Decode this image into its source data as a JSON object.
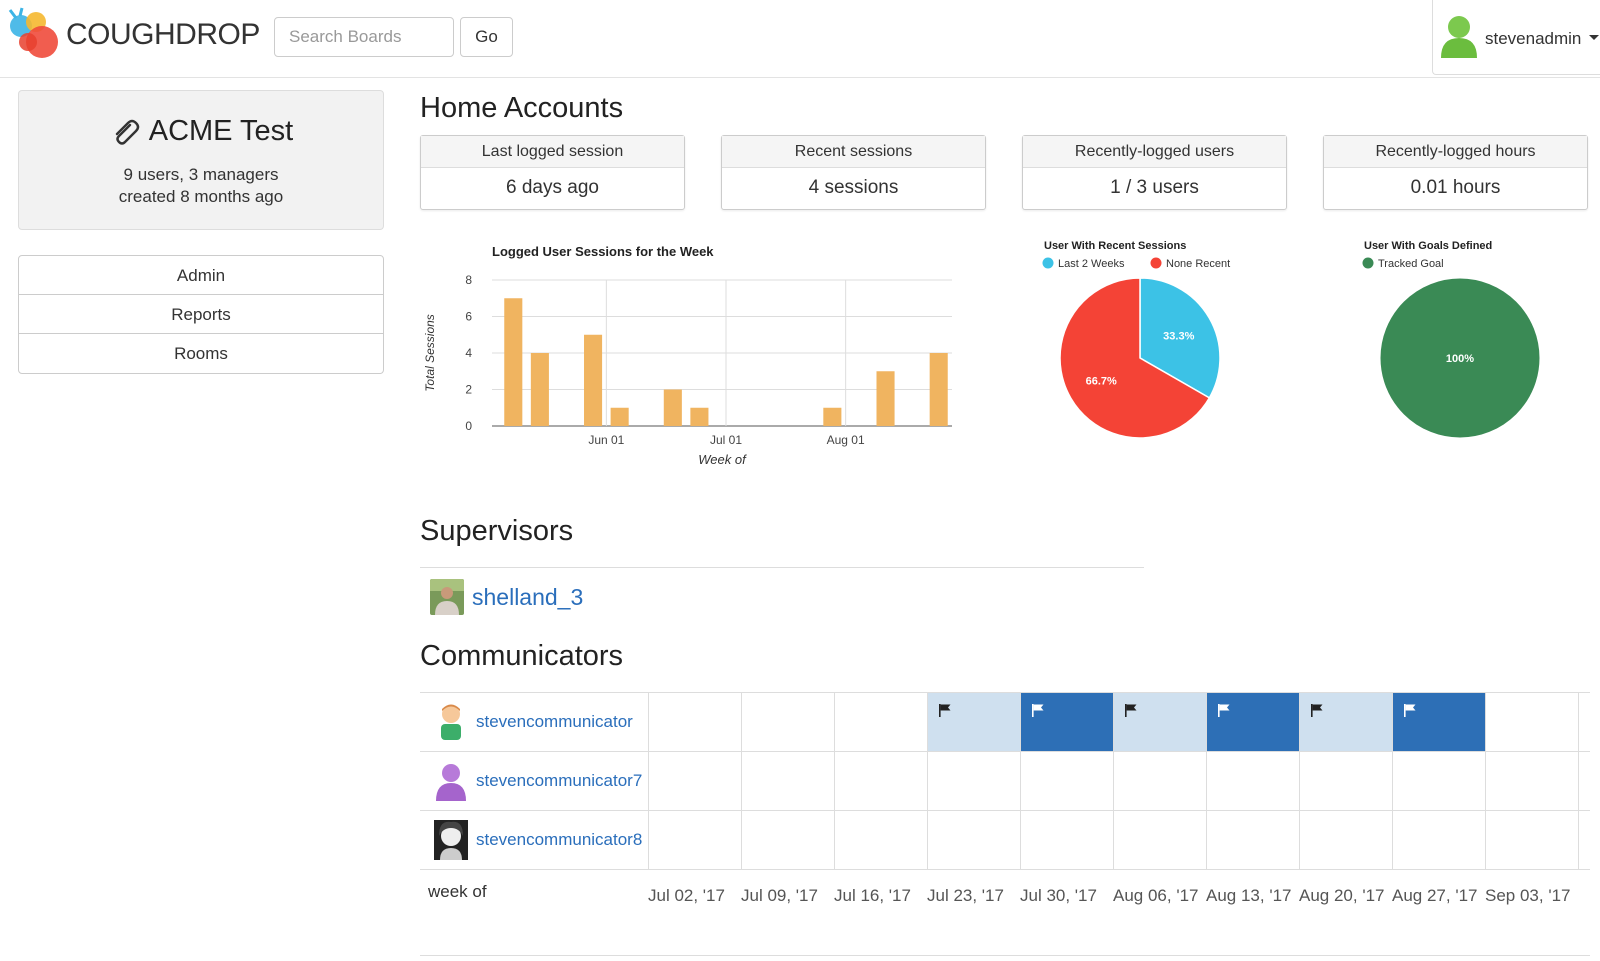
{
  "header": {
    "brand": "COUGHDROP",
    "search_placeholder": "Search Boards",
    "go_label": "Go",
    "username": "stevenadmin"
  },
  "org": {
    "title": "ACME Test",
    "users_line": "9 users, 3 managers",
    "created_line": "created 8 months ago"
  },
  "sidebar": {
    "links": [
      {
        "label": "Admin"
      },
      {
        "label": "Reports"
      },
      {
        "label": "Rooms"
      }
    ]
  },
  "main": {
    "title": "Home Accounts",
    "stats": [
      {
        "label": "Last logged session",
        "value": "6 days ago"
      },
      {
        "label": "Recent sessions",
        "value": "4 sessions"
      },
      {
        "label": "Recently-logged users",
        "value": "1 / 3 users"
      },
      {
        "label": "Recently-logged hours",
        "value": "0.01 hours"
      }
    ],
    "supervisors_title": "Supervisors",
    "supervisors": [
      {
        "name": "shelland_3"
      }
    ],
    "communicators_title": "Communicators",
    "week_of_label": "week of",
    "weeks": [
      "Jul 02, '17",
      "Jul 09, '17",
      "Jul 16, '17",
      "Jul 23, '17",
      "Jul 30, '17",
      "Aug 06, '17",
      "Aug 13, '17",
      "Aug 20, '17",
      "Aug 27, '17",
      "Sep 03, '17"
    ],
    "communicators": [
      {
        "name": "stevencommunicator",
        "avatar": "kid-icon",
        "weeks": [
          "none",
          "none",
          "none",
          "light",
          "dark",
          "light",
          "dark",
          "light",
          "dark",
          "none"
        ]
      },
      {
        "name": "stevencommunicator7",
        "avatar": "purple-user-icon",
        "weeks": [
          "none",
          "none",
          "none",
          "none",
          "none",
          "none",
          "none",
          "none",
          "none",
          "none"
        ]
      },
      {
        "name": "stevencommunicator8",
        "avatar": "photo-avatar",
        "weeks": [
          "none",
          "none",
          "none",
          "none",
          "none",
          "none",
          "none",
          "none",
          "none",
          "none"
        ]
      }
    ]
  },
  "colors": {
    "bar": "#f0b460",
    "pie_recent": "#3cc2e6",
    "pie_none": "#f44336",
    "pie_goal": "#3a8a55",
    "week_light": "#cfe0ef",
    "week_dark": "#2d6fb6",
    "link": "#2a6ebb"
  },
  "chart_data": [
    {
      "type": "bar",
      "title": "Logged User Sessions for the Week",
      "xlabel": "Week of",
      "ylabel": "Total Sessions",
      "ylim": [
        0,
        8
      ],
      "yticks": [
        0,
        2,
        4,
        6,
        8
      ],
      "xtick_labels": [
        {
          "label": "Jun 01",
          "index": 3.5
        },
        {
          "label": "Jul 01",
          "index": 8
        },
        {
          "label": "Aug 01",
          "index": 12.5
        }
      ],
      "values": [
        7,
        4,
        0,
        5,
        1,
        0,
        2,
        1,
        0,
        0,
        0,
        0,
        1,
        0,
        3,
        0,
        4
      ],
      "grid": true
    },
    {
      "type": "pie",
      "title": "User With Recent Sessions",
      "legend": [
        {
          "name": "Last 2 Weeks",
          "color": "#3cc2e6"
        },
        {
          "name": "None Recent",
          "color": "#f44336"
        }
      ],
      "slices": [
        {
          "name": "Last 2 Weeks",
          "value": 33.3,
          "label": "33.3%"
        },
        {
          "name": "None Recent",
          "value": 66.7,
          "label": "66.7%"
        }
      ]
    },
    {
      "type": "pie",
      "title": "User With Goals Defined",
      "legend": [
        {
          "name": "Tracked Goal",
          "color": "#3a8a55"
        }
      ],
      "slices": [
        {
          "name": "Tracked Goal",
          "value": 100,
          "label": "100%"
        }
      ]
    }
  ]
}
